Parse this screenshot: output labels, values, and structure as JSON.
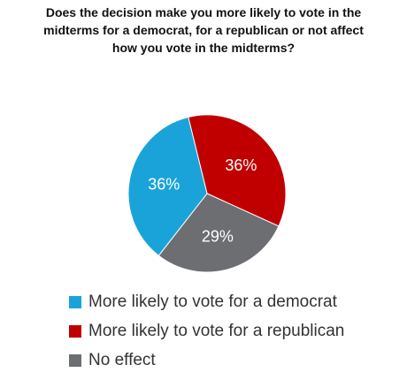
{
  "chart_data": {
    "type": "pie",
    "title_lines": [
      "Does the decision make you more likely to vote in the",
      "midterms for a democrat, for a republican or not affect",
      "how you vote in the midterms?"
    ],
    "slices": [
      {
        "name": "More likely to vote for a republican",
        "value": 36,
        "label": "36%",
        "color": "#c00000"
      },
      {
        "name": "No effect",
        "value": 29,
        "label": "29%",
        "color": "#6d6e71"
      },
      {
        "name": "More likely to vote for a democrat",
        "value": 36,
        "label": "36%",
        "color": "#1aa3d9"
      }
    ],
    "legend": [
      {
        "label": "More likely to vote for a democrat",
        "color": "#1aa3d9"
      },
      {
        "label": "More likely to vote for a republican",
        "color": "#c00000"
      },
      {
        "label": "No effect",
        "color": "#6d6e71"
      }
    ],
    "legend_position": "bottom"
  }
}
